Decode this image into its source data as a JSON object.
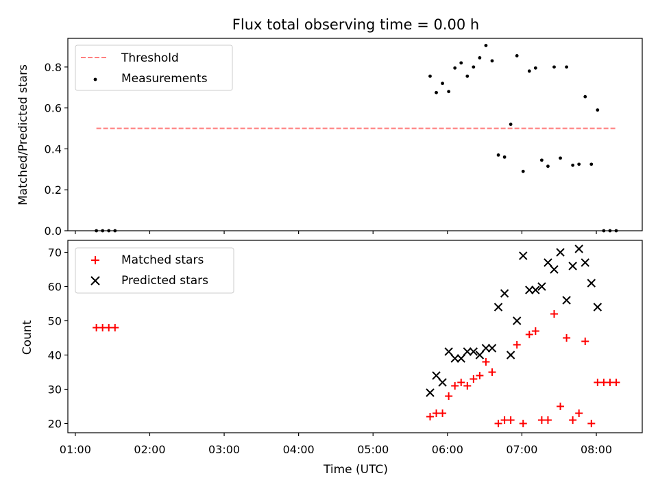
{
  "chart_data": [
    {
      "type": "scatter",
      "title": "Flux total observing time = 0.00 h",
      "xlabel": "",
      "ylabel": "Matched/Predicted stars",
      "xlim": [
        "00:54",
        "08:37"
      ],
      "ylim": [
        0,
        0.94
      ],
      "yticks": [
        0.0,
        0.2,
        0.4,
        0.6,
        0.8
      ],
      "ytick_labels": [
        "0.0",
        "0.2",
        "0.4",
        "0.6",
        "0.8"
      ],
      "grid": false,
      "legend_placement": "upper-left",
      "legend": [
        "Threshold",
        "Measurements"
      ],
      "threshold": {
        "name": "Threshold",
        "value": 0.5,
        "x_start": "01:17",
        "x_end": "08:16",
        "color": "#ff7f7f",
        "style": "dashed"
      },
      "series": [
        {
          "name": "Measurements",
          "marker": "dot",
          "color": "#000000",
          "points": [
            [
              "01:17",
              0.0
            ],
            [
              "01:22",
              0.0
            ],
            [
              "01:27",
              0.0
            ],
            [
              "01:32",
              0.0
            ],
            [
              "05:46",
              0.755
            ],
            [
              "05:51",
              0.675
            ],
            [
              "05:56",
              0.72
            ],
            [
              "06:01",
              0.68
            ],
            [
              "06:06",
              0.795
            ],
            [
              "06:11",
              0.82
            ],
            [
              "06:16",
              0.755
            ],
            [
              "06:21",
              0.8
            ],
            [
              "06:26",
              0.845
            ],
            [
              "06:31",
              0.905
            ],
            [
              "06:36",
              0.83
            ],
            [
              "06:41",
              0.37
            ],
            [
              "06:46",
              0.36
            ],
            [
              "06:51",
              0.52
            ],
            [
              "06:56",
              0.855
            ],
            [
              "07:01",
              0.29
            ],
            [
              "07:06",
              0.78
            ],
            [
              "07:11",
              0.795
            ],
            [
              "07:16",
              0.345
            ],
            [
              "07:21",
              0.315
            ],
            [
              "07:26",
              0.8
            ],
            [
              "07:31",
              0.355
            ],
            [
              "07:36",
              0.8
            ],
            [
              "07:41",
              0.32
            ],
            [
              "07:46",
              0.325
            ],
            [
              "07:51",
              0.655
            ],
            [
              "07:56",
              0.325
            ],
            [
              "08:01",
              0.59
            ],
            [
              "08:06",
              0.0
            ],
            [
              "08:11",
              0.0
            ],
            [
              "08:16",
              0.0
            ]
          ]
        }
      ]
    },
    {
      "type": "scatter",
      "title": "",
      "xlabel": "Time (UTC)",
      "ylabel": "Count",
      "xlim": [
        "00:54",
        "08:37"
      ],
      "ylim": [
        17.3,
        73.5
      ],
      "yticks": [
        20,
        30,
        40,
        50,
        60,
        70
      ],
      "ytick_labels": [
        "20",
        "30",
        "40",
        "50",
        "60",
        "70"
      ],
      "xticks": [
        "01:00",
        "02:00",
        "03:00",
        "04:00",
        "05:00",
        "06:00",
        "07:00",
        "08:00"
      ],
      "grid": false,
      "legend_placement": "upper-left",
      "legend": [
        "Matched stars",
        "Predicted stars"
      ],
      "series": [
        {
          "name": "Matched stars",
          "marker": "plus",
          "color": "#ff0000",
          "points": [
            [
              "01:17",
              48
            ],
            [
              "01:22",
              48
            ],
            [
              "01:27",
              48
            ],
            [
              "01:32",
              48
            ],
            [
              "05:46",
              22
            ],
            [
              "05:51",
              23
            ],
            [
              "05:56",
              23
            ],
            [
              "06:01",
              28
            ],
            [
              "06:06",
              31
            ],
            [
              "06:11",
              32
            ],
            [
              "06:16",
              31
            ],
            [
              "06:21",
              33
            ],
            [
              "06:26",
              34
            ],
            [
              "06:31",
              38
            ],
            [
              "06:36",
              35
            ],
            [
              "06:41",
              20
            ],
            [
              "06:46",
              21
            ],
            [
              "06:51",
              21
            ],
            [
              "06:56",
              43
            ],
            [
              "07:01",
              20
            ],
            [
              "07:06",
              46
            ],
            [
              "07:11",
              47
            ],
            [
              "07:16",
              21
            ],
            [
              "07:21",
              21
            ],
            [
              "07:26",
              52
            ],
            [
              "07:31",
              25
            ],
            [
              "07:36",
              45
            ],
            [
              "07:41",
              21
            ],
            [
              "07:46",
              23
            ],
            [
              "07:51",
              44
            ],
            [
              "07:56",
              20
            ],
            [
              "08:01",
              32
            ],
            [
              "08:06",
              32
            ],
            [
              "08:11",
              32
            ],
            [
              "08:16",
              32
            ]
          ]
        },
        {
          "name": "Predicted stars",
          "marker": "x",
          "color": "#000000",
          "points": [
            [
              "05:46",
              29
            ],
            [
              "05:51",
              34
            ],
            [
              "05:56",
              32
            ],
            [
              "06:01",
              41
            ],
            [
              "06:06",
              39
            ],
            [
              "06:11",
              39
            ],
            [
              "06:16",
              41
            ],
            [
              "06:21",
              41
            ],
            [
              "06:26",
              40
            ],
            [
              "06:31",
              42
            ],
            [
              "06:36",
              42
            ],
            [
              "06:41",
              54
            ],
            [
              "06:46",
              58
            ],
            [
              "06:51",
              40
            ],
            [
              "06:56",
              50
            ],
            [
              "07:01",
              69
            ],
            [
              "07:06",
              59
            ],
            [
              "07:11",
              59
            ],
            [
              "07:16",
              60
            ],
            [
              "07:21",
              67
            ],
            [
              "07:26",
              65
            ],
            [
              "07:31",
              70
            ],
            [
              "07:36",
              56
            ],
            [
              "07:41",
              66
            ],
            [
              "07:46",
              71
            ],
            [
              "07:51",
              67
            ],
            [
              "07:56",
              61
            ],
            [
              "08:01",
              54
            ]
          ]
        }
      ]
    }
  ]
}
